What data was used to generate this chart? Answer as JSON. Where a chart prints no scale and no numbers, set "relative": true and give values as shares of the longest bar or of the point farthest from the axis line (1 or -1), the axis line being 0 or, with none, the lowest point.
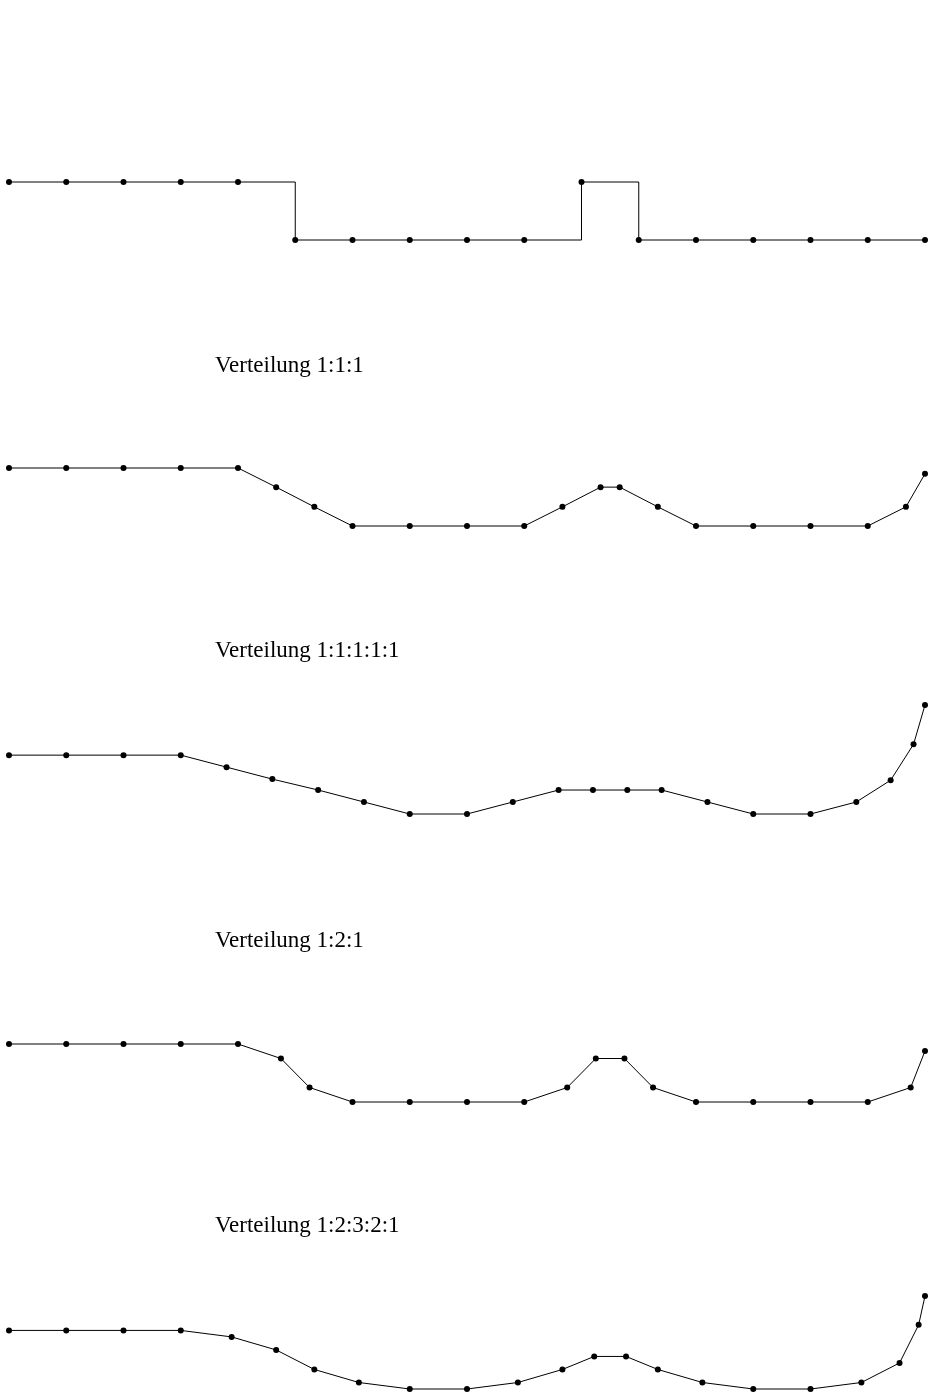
{
  "chart_data": [
    {
      "type": "step",
      "relative": true,
      "marker": "circle",
      "categories": [
        null,
        null,
        null,
        null,
        null,
        null,
        null,
        null,
        null,
        null,
        null,
        null,
        null,
        null,
        null,
        null,
        null
      ],
      "series": [
        {
          "color": "#000000",
          "values": [
            1,
            1,
            1,
            1,
            1,
            0,
            0,
            0,
            0,
            0,
            1,
            0,
            0,
            0,
            0,
            0,
            0
          ]
        }
      ]
    },
    {
      "type": "line",
      "title": "Verteilung 1:1:1",
      "relative": true,
      "marker": "circle",
      "categories": [
        null,
        null,
        null,
        null,
        null,
        null,
        null,
        null,
        null,
        null,
        null,
        null,
        null,
        null,
        null,
        null,
        null,
        null,
        null,
        null,
        null,
        null,
        null,
        null,
        null,
        null,
        null,
        null,
        null,
        null,
        null,
        null,
        null,
        null,
        null,
        null,
        null,
        null,
        null,
        null,
        null,
        null,
        null,
        null,
        null,
        null,
        null,
        null,
        null
      ],
      "series": [
        {
          "color": "#000000",
          "values": [
            1,
            null,
            null,
            1,
            null,
            null,
            1,
            null,
            null,
            1,
            null,
            null,
            1,
            null,
            0.67,
            null,
            0.33,
            null,
            0,
            null,
            null,
            0,
            null,
            null,
            0,
            null,
            null,
            0,
            null,
            0.33,
            null,
            0.67,
            0.67,
            null,
            0.33,
            null,
            0,
            null,
            null,
            0,
            null,
            null,
            0,
            null,
            null,
            0,
            null,
            0.33,
            0.9
          ]
        }
      ]
    },
    {
      "type": "line",
      "title": "Verteilung 1:1:1:1:1",
      "relative": true,
      "marker": "circle",
      "categories": [
        null,
        null,
        null,
        null,
        null,
        null,
        null,
        null,
        null,
        null,
        null,
        null,
        null,
        null,
        null,
        null,
        null,
        null,
        null,
        null,
        null,
        null,
        null,
        null,
        null,
        null,
        null,
        null,
        null,
        null,
        null,
        null,
        null,
        null,
        null,
        null,
        null,
        null,
        null,
        null,
        null,
        null,
        null,
        null,
        null,
        null,
        null,
        null,
        null,
        null,
        null,
        null,
        null,
        null,
        null,
        null,
        null,
        null,
        null,
        null,
        null,
        null,
        null,
        null,
        null,
        null,
        null,
        null,
        null,
        null,
        null,
        null,
        null,
        null,
        null,
        null,
        null,
        null,
        null,
        null,
        null
      ],
      "series": [
        {
          "color": "#000000",
          "values": [
            0.54,
            null,
            null,
            null,
            null,
            0.54,
            null,
            null,
            null,
            null,
            0.54,
            null,
            null,
            null,
            null,
            0.54,
            null,
            null,
            null,
            0.43,
            null,
            null,
            null,
            0.32,
            null,
            null,
            null,
            0.22,
            null,
            null,
            null,
            0.11,
            null,
            null,
            null,
            0,
            null,
            null,
            null,
            null,
            0,
            null,
            null,
            null,
            0.11,
            null,
            null,
            null,
            0.22,
            null,
            null,
            0.22,
            null,
            null,
            0.22,
            null,
            null,
            0.22,
            null,
            null,
            null,
            0.11,
            null,
            null,
            null,
            0,
            null,
            null,
            null,
            null,
            0,
            null,
            null,
            null,
            0.11,
            null,
            null,
            0.31,
            null,
            0.64,
            1
          ]
        }
      ]
    },
    {
      "type": "line",
      "title": "Verteilung 1:2:1",
      "relative": true,
      "marker": "circle",
      "categories": [
        null,
        null,
        null,
        null,
        null,
        null,
        null,
        null,
        null,
        null,
        null,
        null,
        null,
        null,
        null,
        null,
        null,
        null,
        null,
        null,
        null,
        null,
        null,
        null,
        null,
        null,
        null,
        null,
        null,
        null,
        null,
        null,
        null,
        null,
        null,
        null,
        null,
        null,
        null,
        null,
        null,
        null,
        null,
        null,
        null,
        null,
        null,
        null,
        null,
        null,
        null,
        null,
        null,
        null,
        null,
        null,
        null,
        null,
        null,
        null,
        null,
        null,
        null,
        null,
        null
      ],
      "series": [
        {
          "color": "#000000",
          "values": [
            1,
            null,
            null,
            null,
            1,
            null,
            null,
            null,
            1,
            null,
            null,
            null,
            1,
            null,
            null,
            null,
            1,
            null,
            null,
            0.75,
            null,
            0.25,
            null,
            null,
            0,
            null,
            null,
            null,
            0,
            null,
            null,
            null,
            0,
            null,
            null,
            null,
            0,
            null,
            null,
            0.25,
            null,
            0.75,
            null,
            0.75,
            null,
            0.25,
            null,
            null,
            0,
            null,
            null,
            null,
            0,
            null,
            null,
            null,
            0,
            null,
            null,
            null,
            0,
            null,
            null,
            0.25,
            0.88
          ]
        }
      ]
    },
    {
      "type": "line",
      "title": "Verteilung 1:2:3:2:1",
      "relative": true,
      "marker": "circle",
      "categories": [
        null,
        null,
        null,
        null,
        null,
        null,
        null,
        null,
        null,
        null,
        null,
        null,
        null,
        null,
        null,
        null,
        null,
        null,
        null,
        null,
        null,
        null,
        null,
        null,
        null,
        null,
        null,
        null,
        null,
        null,
        null,
        null,
        null,
        null,
        null,
        null,
        null,
        null,
        null,
        null,
        null,
        null,
        null,
        null,
        null,
        null,
        null,
        null,
        null,
        null,
        null,
        null,
        null,
        null,
        null,
        null,
        null,
        null,
        null,
        null,
        null,
        null,
        null,
        null,
        null,
        null,
        null,
        null,
        null,
        null,
        null,
        null,
        null,
        null,
        null,
        null,
        null,
        null,
        null,
        null,
        null,
        null,
        null,
        null,
        null,
        null,
        null,
        null,
        null,
        null,
        null,
        null,
        null,
        null,
        null,
        null,
        null,
        null,
        null,
        null,
        null,
        null,
        null,
        null,
        null,
        null,
        null,
        null,
        null,
        null,
        null,
        null,
        null,
        null,
        null,
        null,
        null,
        null,
        null,
        null,
        null,
        null,
        null,
        null,
        null,
        null,
        null,
        null,
        null,
        null,
        null,
        null,
        null,
        null,
        null,
        null,
        null,
        null,
        null,
        null,
        null,
        null,
        null,
        null,
        null
      ],
      "series": [
        {
          "color": "#000000",
          "values": [
            0.63,
            null,
            null,
            null,
            null,
            null,
            null,
            null,
            null,
            0.63,
            null,
            null,
            null,
            null,
            null,
            null,
            null,
            null,
            0.63,
            null,
            null,
            null,
            null,
            null,
            null,
            null,
            null,
            0.63,
            null,
            null,
            null,
            null,
            null,
            null,
            null,
            0.56,
            null,
            null,
            null,
            null,
            null,
            null,
            0.42,
            null,
            null,
            null,
            null,
            null,
            0.21,
            null,
            null,
            null,
            null,
            null,
            null,
            0.07,
            null,
            null,
            null,
            null,
            null,
            null,
            null,
            0,
            null,
            null,
            null,
            null,
            null,
            null,
            null,
            null,
            0,
            null,
            null,
            null,
            null,
            null,
            null,
            null,
            0.07,
            null,
            null,
            null,
            null,
            null,
            null,
            0.21,
            null,
            null,
            null,
            null,
            0.35,
            null,
            null,
            null,
            null,
            0.35,
            null,
            null,
            null,
            null,
            0.21,
            null,
            null,
            null,
            null,
            null,
            null,
            0.07,
            null,
            null,
            null,
            null,
            null,
            null,
            null,
            0,
            null,
            null,
            null,
            null,
            null,
            null,
            null,
            null,
            0,
            null,
            null,
            null,
            null,
            null,
            null,
            null,
            0.07,
            null,
            null,
            null,
            null,
            null,
            0.28,
            null,
            null,
            0.69,
            1
          ]
        }
      ]
    }
  ]
}
